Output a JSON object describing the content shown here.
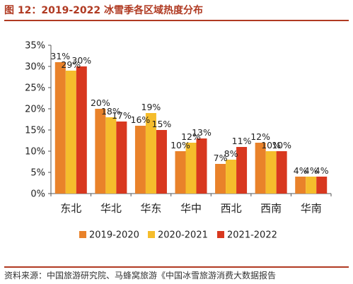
{
  "title": "图 12：2019-2022 冰雪季各区域热度分布",
  "source": "资料来源：中国旅游研究院、马蜂窝旅游《中国冰雪旅游消费大数据报告",
  "chart_data": {
    "type": "bar",
    "title": "",
    "xlabel": "",
    "ylabel": "",
    "ylim": [
      0,
      35
    ],
    "yticks": [
      "0%",
      "5%",
      "10%",
      "15%",
      "20%",
      "25%",
      "30%",
      "35%"
    ],
    "categories": [
      "东北",
      "华北",
      "华东",
      "华中",
      "西北",
      "西南",
      "华南"
    ],
    "series": [
      {
        "name": "2019-2020",
        "color": "#e9822a",
        "values": [
          31,
          20,
          16,
          10,
          7,
          12,
          4
        ],
        "labels": [
          "31%",
          "20%",
          "16%",
          "10%",
          "7%",
          "12%",
          "4%"
        ]
      },
      {
        "name": "2020-2021",
        "color": "#f5bd2c",
        "values": [
          29,
          18,
          19,
          12,
          8,
          10,
          4
        ],
        "labels": [
          "29%",
          "18%",
          "19%",
          "12%",
          "8%",
          "10%",
          "4%"
        ]
      },
      {
        "name": "2021-2022",
        "color": "#d8381f",
        "values": [
          30,
          17,
          15,
          13,
          11,
          10,
          4
        ],
        "labels": [
          "30%",
          "17%",
          "15%",
          "13%",
          "11%",
          "10%",
          "4%"
        ]
      }
    ],
    "grid": false,
    "legend_position": "bottom"
  }
}
